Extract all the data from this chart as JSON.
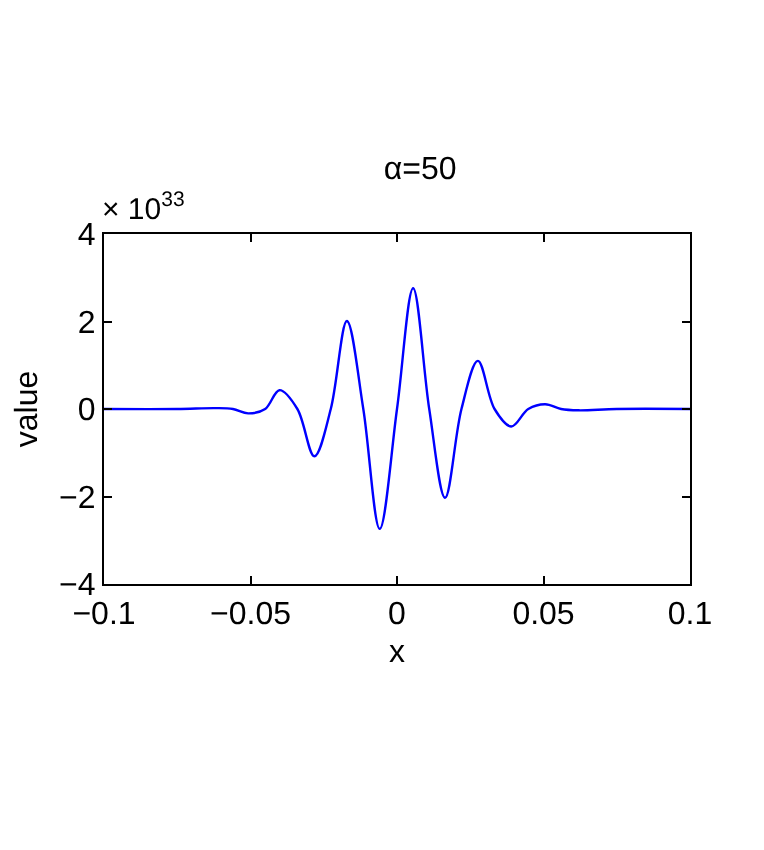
{
  "chart_data": {
    "type": "line",
    "title": "α=50",
    "xlabel": "x",
    "ylabel": "value",
    "annotations": [
      "× 10$^{33}$"
    ],
    "x": [
      -0.1,
      -0.075,
      -0.062,
      -0.056,
      -0.0508,
      -0.045,
      -0.0401,
      -0.034,
      -0.0282,
      -0.0226,
      -0.0171,
      -0.0115,
      -0.0059,
      0,
      0.0055,
      0.011,
      0.0164,
      0.022,
      0.0276,
      0.0333,
      0.039,
      0.0448,
      0.0506,
      0.056,
      0.062,
      0.075,
      0.1
    ],
    "series": [
      {
        "color": "#0000ff",
        "values": [
          0,
          0,
          0.02,
          0,
          -0.1,
          0,
          0.43,
          0,
          -1.08,
          0,
          2.01,
          0,
          -2.74,
          0,
          2.76,
          0,
          -2.03,
          0,
          1.1,
          0,
          -0.4,
          0,
          0.11,
          0,
          -0.03,
          0,
          0
        ]
      }
    ],
    "xlim": [
      -0.1,
      0.1
    ],
    "xticks": [
      {
        "value": -0.1,
        "label": "−0.1"
      },
      {
        "value": -0.05,
        "label": "−0.05"
      },
      0,
      0.05,
      0.1
    ],
    "ylim": [
      -4,
      4
    ],
    "yticks": [
      {
        "value": -4,
        "label": "−4"
      },
      {
        "value": -2,
        "label": "−2"
      },
      0,
      2,
      4
    ],
    "grid": false,
    "legend": false,
    "marker": "none",
    "line_style": "solid"
  }
}
